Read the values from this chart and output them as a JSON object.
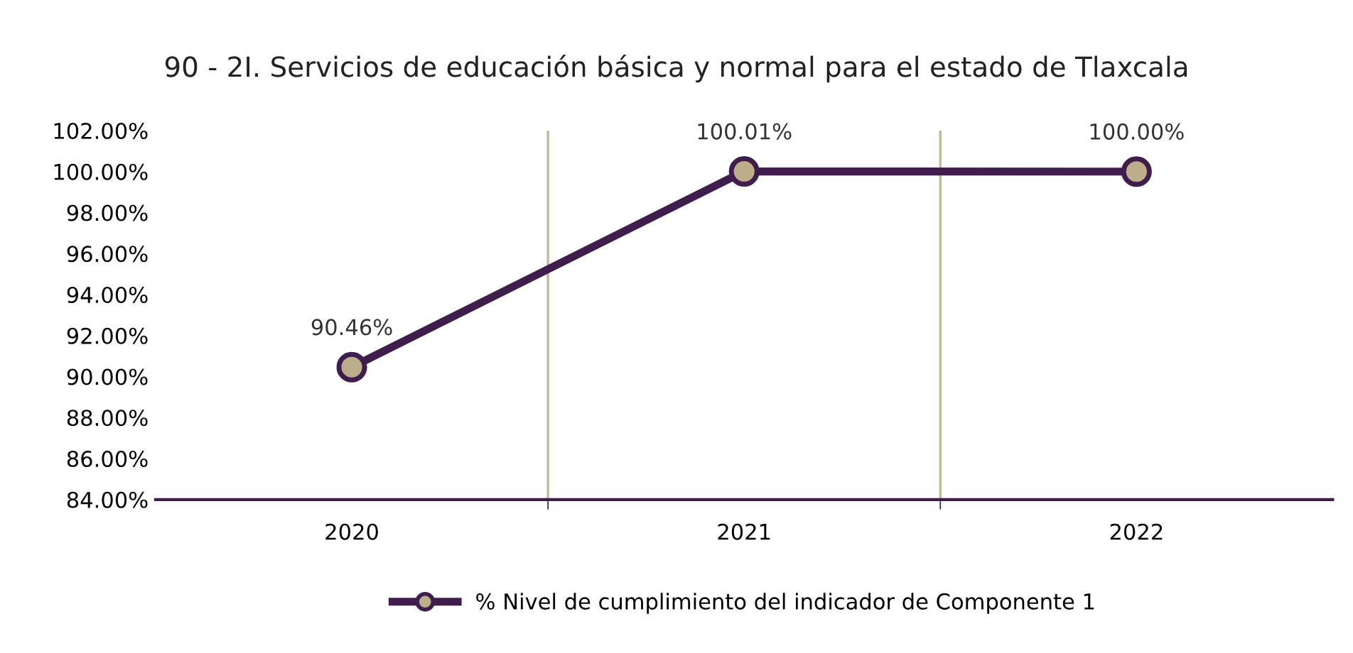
{
  "chart_data": {
    "type": "line",
    "title": "90 - 2I. Servicios de educación básica y normal para el estado de Tlaxcala",
    "categories": [
      "2020",
      "2021",
      "2022"
    ],
    "series": [
      {
        "name": "% Nivel de cumplimiento del indicador de Componente 1",
        "color": "#3f1d4d",
        "values": [
          90.46,
          100.01,
          100.0
        ],
        "value_labels": [
          "90.46%",
          "100.01%",
          "100.00%"
        ]
      }
    ],
    "ylim": [
      84,
      102
    ],
    "yticks": [
      {
        "value": 84,
        "label": "84.00%"
      },
      {
        "value": 86,
        "label": "86.00%"
      },
      {
        "value": 88,
        "label": "88.00%"
      },
      {
        "value": 90,
        "label": "90.00%"
      },
      {
        "value": 92,
        "label": "92.00%"
      },
      {
        "value": 94,
        "label": "94.00%"
      },
      {
        "value": 96,
        "label": "96.00%"
      },
      {
        "value": 98,
        "label": "98.00%"
      },
      {
        "value": 100,
        "label": "100.00%"
      },
      {
        "value": 102,
        "label": "102.00%"
      }
    ],
    "grid": "x",
    "legend": "bottom",
    "marker": "circle",
    "line_style": "solid"
  }
}
